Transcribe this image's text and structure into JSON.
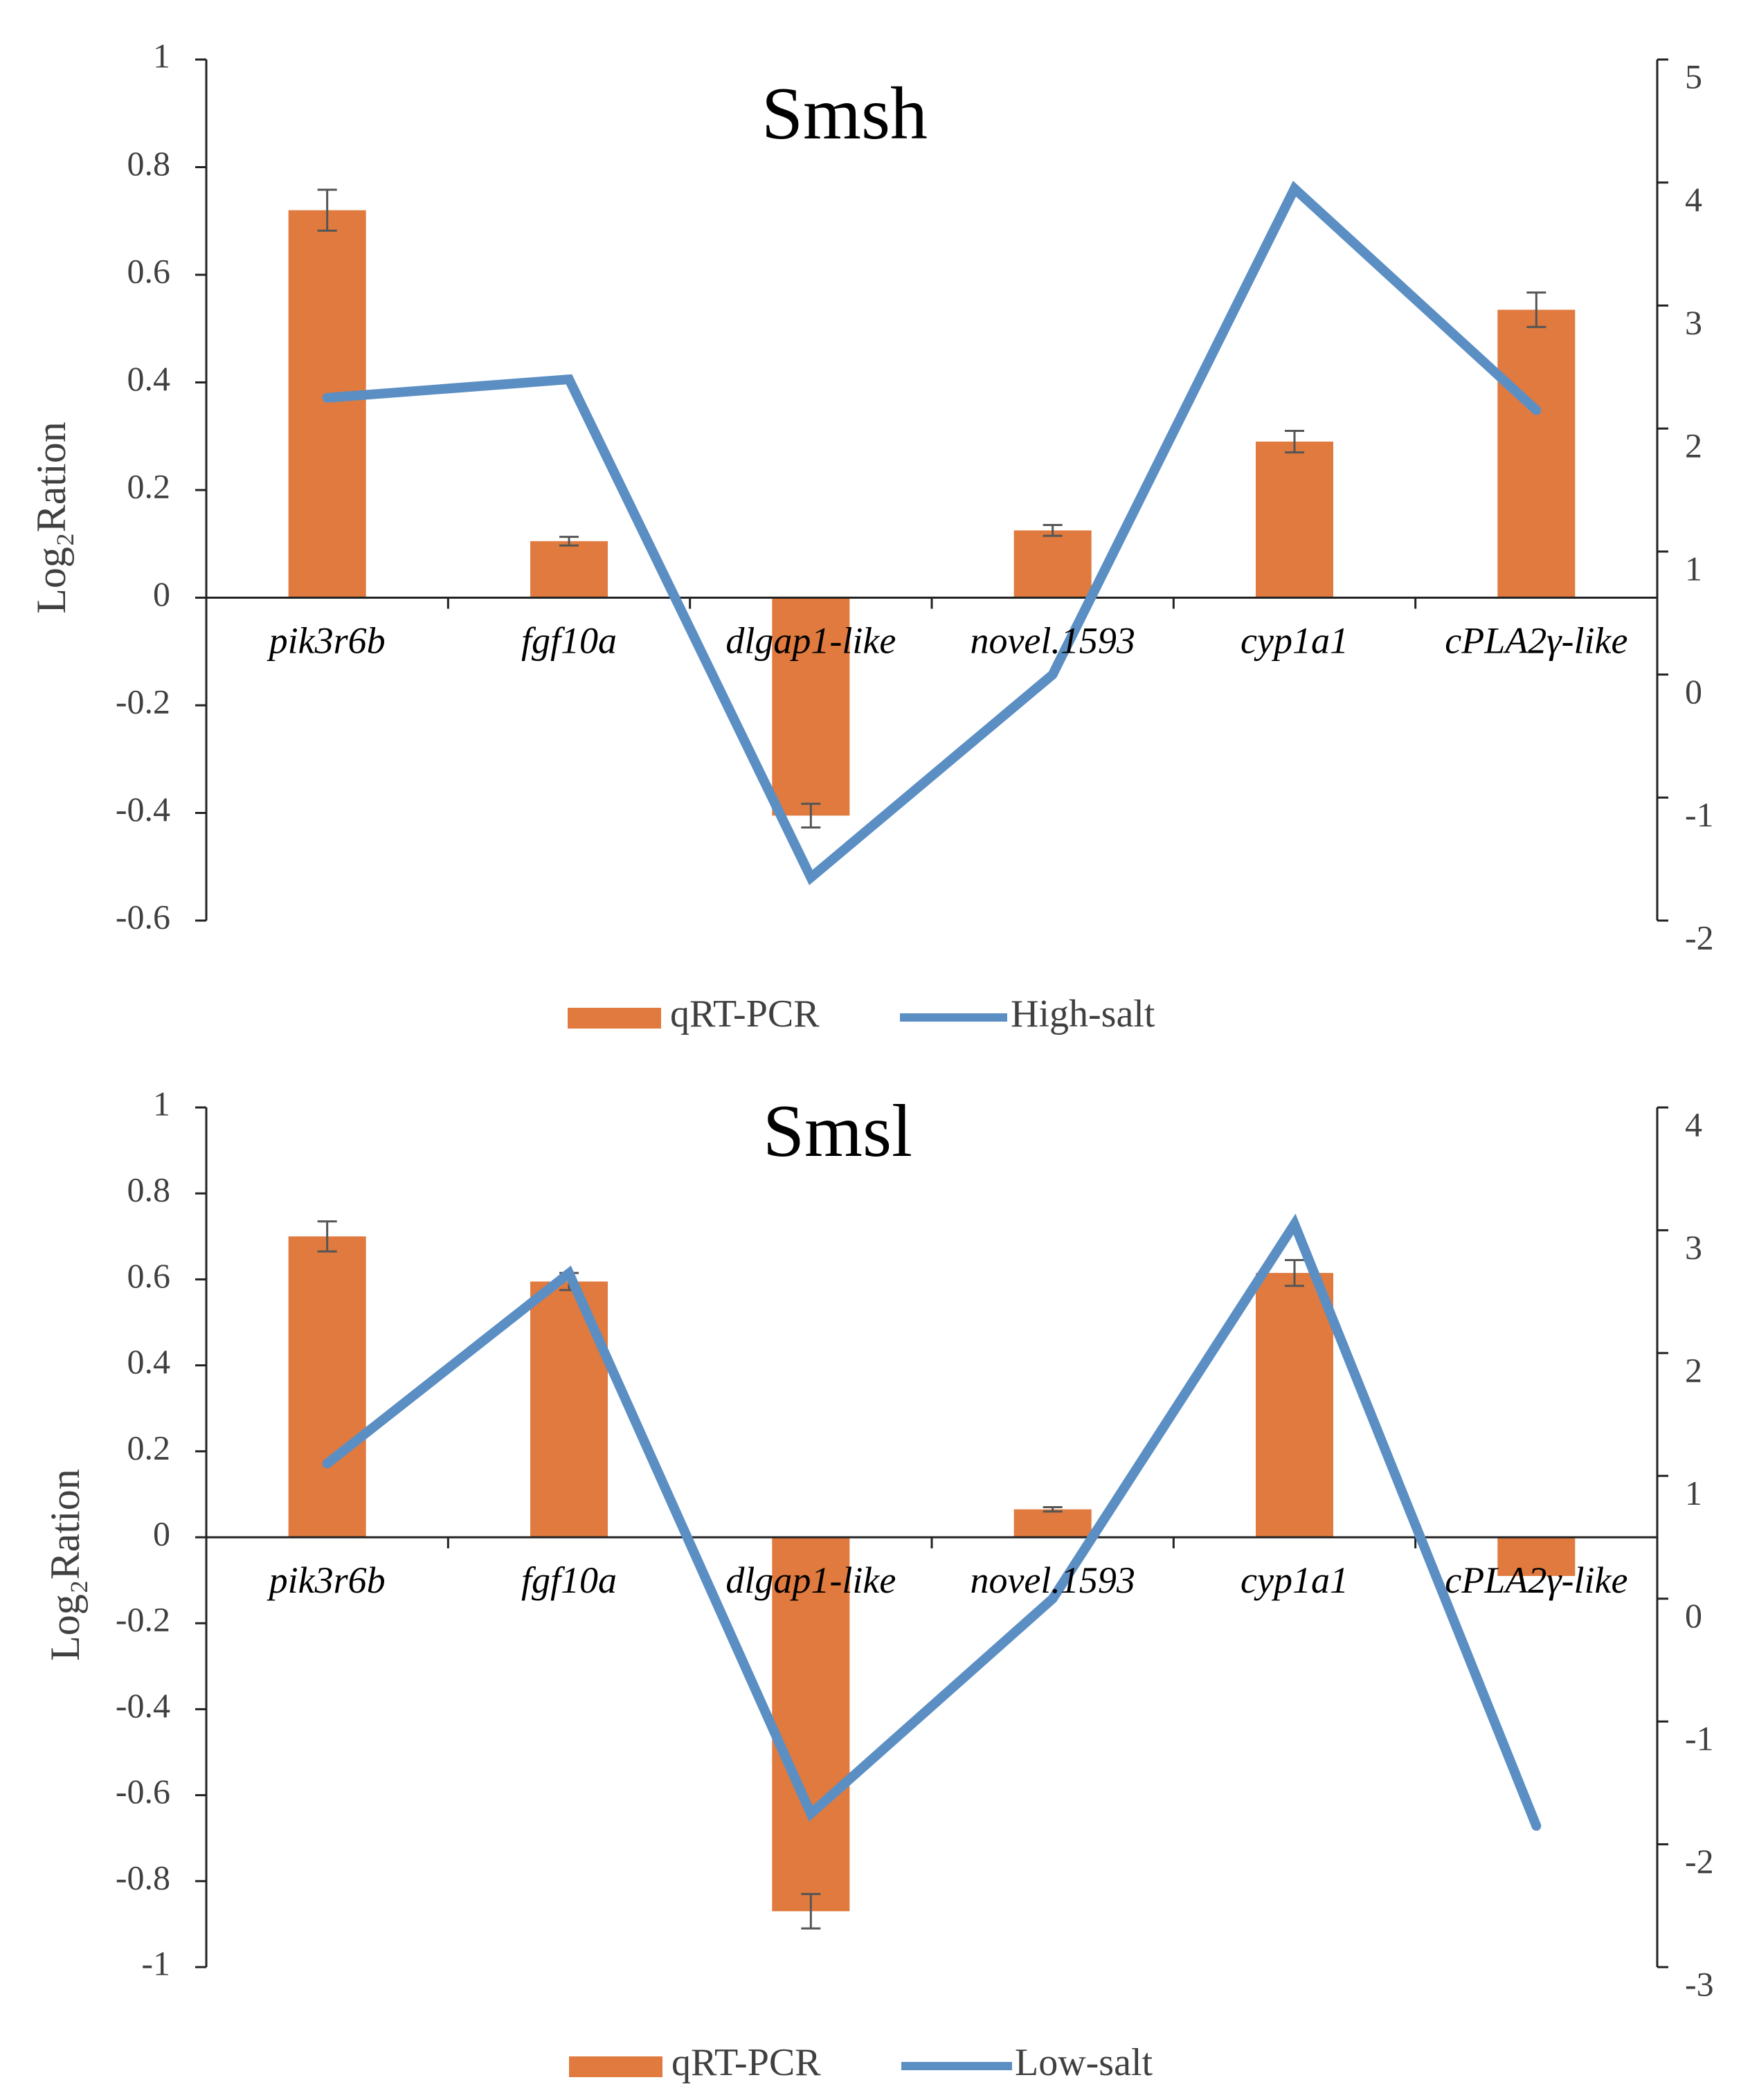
{
  "colors": {
    "bar": "#E07A3F",
    "line": "#5B8FC4",
    "axis": "#222222",
    "error": "#555555"
  },
  "chart_data": [
    {
      "type": "bar",
      "title": "Smsh",
      "ylabel": "Log₂Ration",
      "categories": [
        "pik3r6b",
        "fgf10a",
        "dlgap1-like",
        "novel.1593",
        "cyp1a1",
        "cPLA2γ-like"
      ],
      "ylim": [
        -0.6,
        1
      ],
      "yticks": [
        "1",
        "0.8",
        "0.6",
        "0.4",
        "0.2",
        "0",
        "-0.2",
        "-0.4",
        "-0.6"
      ],
      "y2lim": [
        -2,
        5
      ],
      "y2ticks": [
        "5",
        "4",
        "3",
        "2",
        "1",
        "0",
        "-1",
        "-2"
      ],
      "series": [
        {
          "name": "qRT-PCR",
          "type": "bar",
          "axis": "left",
          "values": [
            0.72,
            0.105,
            -0.405,
            0.125,
            0.29,
            0.535
          ],
          "errors": [
            0.038,
            0.008,
            0.022,
            0.01,
            0.02,
            0.032
          ]
        },
        {
          "name": "High-salt",
          "type": "line",
          "axis": "right",
          "values": [
            2.25,
            2.4,
            -1.65,
            0.0,
            3.95,
            2.15
          ]
        }
      ],
      "legend": [
        "qRT-PCR",
        "High-salt"
      ]
    },
    {
      "type": "bar",
      "title": "Smsl",
      "ylabel": "Log₂Ration",
      "categories": [
        "pik3r6b",
        "fgf10a",
        "dlgap1-like",
        "novel.1593",
        "cyp1a1",
        "cPLA2γ-like"
      ],
      "ylim": [
        -1,
        1
      ],
      "yticks": [
        "1",
        "0.8",
        "0.6",
        "0.4",
        "0.2",
        "0",
        "-0.2",
        "-0.4",
        "-0.6",
        "-0.8",
        "-1"
      ],
      "y2lim": [
        -3,
        4
      ],
      "y2ticks": [
        "4",
        "3",
        "2",
        "1",
        "0",
        "-1",
        "-2",
        "-3"
      ],
      "series": [
        {
          "name": "qRT-PCR",
          "type": "bar",
          "axis": "left",
          "values": [
            0.7,
            0.595,
            -0.87,
            0.065,
            0.615,
            -0.09
          ],
          "errors": [
            0.035,
            0.02,
            0.04,
            0.005,
            0.03,
            0.0
          ]
        },
        {
          "name": "Low-salt",
          "type": "line",
          "axis": "right",
          "values": [
            1.1,
            2.65,
            -1.75,
            0.0,
            3.05,
            -1.85
          ]
        }
      ],
      "legend": [
        "qRT-PCR",
        "Low-salt"
      ]
    }
  ]
}
